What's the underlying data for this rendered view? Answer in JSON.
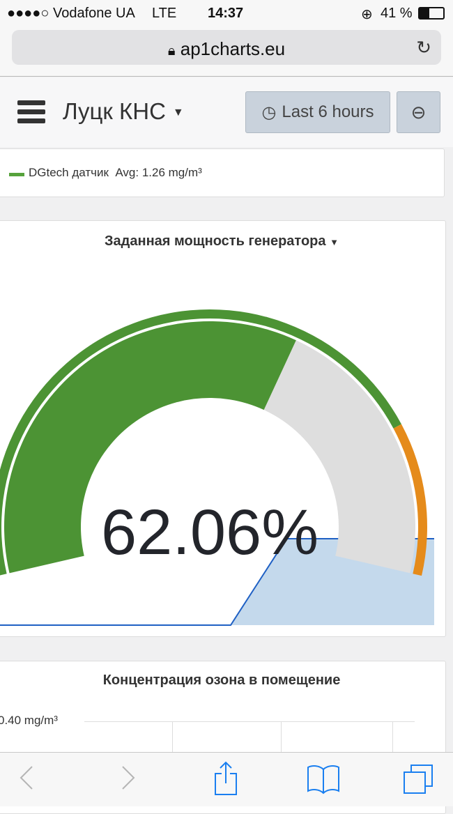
{
  "status_bar": {
    "carrier": "●●●●○ Vodafone UA",
    "network": "LTE",
    "time": "14:37",
    "battery": "41 %",
    "battery_level": 41
  },
  "browser": {
    "url": "ap1charts.eu"
  },
  "header": {
    "title": "Луцк КНС",
    "time_range": "Last 6 hours"
  },
  "legend": {
    "series": "DGtech датчик",
    "avg": "Avg: 1.26 mg/m³",
    "color": "#56a23c"
  },
  "gauge_panel": {
    "title": "Заданная мощность генератора",
    "value_text": "62.06%",
    "value": 62.06,
    "min": 0,
    "max": 100,
    "threshold": 80,
    "colors": {
      "ok": "#4c9334",
      "warn": "#e58b1b",
      "empty": "#dedede",
      "spark": "#1f60c4",
      "spark_fill": "#c4d9ec"
    }
  },
  "ozone_panel": {
    "title": "Концентрация озона в помещение",
    "y_tick": "0.40 mg/m³"
  },
  "toolbar": {
    "colors": {
      "active": "#1a7ff0",
      "disabled": "#b5b5b5"
    }
  }
}
